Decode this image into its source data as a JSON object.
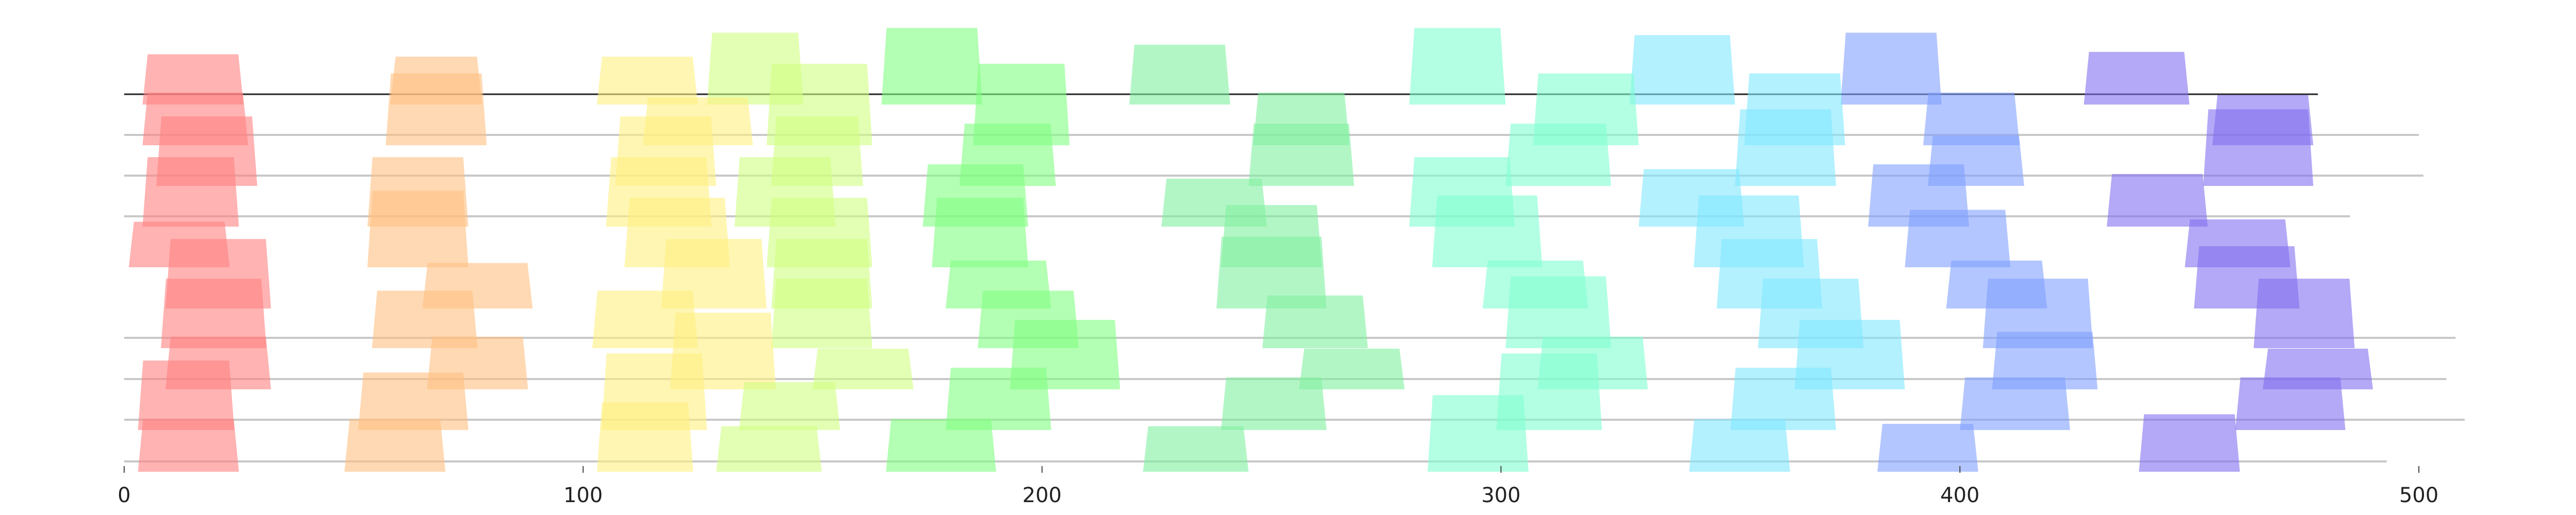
{
  "chart_data": {
    "type": "bar",
    "title": "",
    "xlabel": "",
    "ylabel": "",
    "xlim": [
      0,
      500
    ],
    "x_ticks": [
      0,
      100,
      200,
      300,
      400,
      500
    ],
    "x_tick_labels": [
      "0",
      "100",
      "200",
      "300",
      "400",
      "500"
    ],
    "grid": false,
    "legend": "none",
    "rows": [
      {
        "top": true,
        "end": 478
      },
      {
        "end": 500
      },
      {
        "end": 501
      },
      {
        "end": 485
      },
      {
        "end": 0
      },
      {
        "end": 0
      },
      {
        "end": 508
      },
      {
        "end": 506
      },
      {
        "end": 510
      },
      {
        "end": 493
      }
    ],
    "bars": [
      {
        "start": 4,
        "end": 26,
        "row": 0,
        "hi": 1.05,
        "lo": 0,
        "color": "#FF8080"
      },
      {
        "start": 58,
        "end": 78,
        "row": 0,
        "hi": 1.0,
        "lo": 0,
        "color": "#FFC080"
      },
      {
        "start": 103,
        "end": 125,
        "row": 0,
        "hi": 1.0,
        "lo": 0,
        "color": "#FFF080"
      },
      {
        "start": 127,
        "end": 148,
        "row": 0,
        "hi": 1.5,
        "lo": 0,
        "color": "#D0FF80"
      },
      {
        "start": 165,
        "end": 187,
        "row": 0,
        "hi": 1.6,
        "lo": 0,
        "color": "#80FF80"
      },
      {
        "start": 219,
        "end": 241,
        "row": 0,
        "hi": 1.25,
        "lo": 0,
        "color": "#80F0A0"
      },
      {
        "start": 280,
        "end": 301,
        "row": 0,
        "hi": 1.6,
        "lo": 0,
        "color": "#80FFD0"
      },
      {
        "start": 328,
        "end": 351,
        "row": 0,
        "hi": 1.45,
        "lo": 0,
        "color": "#80E8FF"
      },
      {
        "start": 374,
        "end": 396,
        "row": 0,
        "hi": 1.5,
        "lo": 0,
        "color": "#80A0FF"
      },
      {
        "start": 427,
        "end": 450,
        "row": 0,
        "hi": 1.1,
        "lo": 0,
        "color": "#8070F0"
      },
      {
        "start": 4,
        "end": 27,
        "row": 1,
        "hi": 1.1,
        "lo": 0,
        "color": "#FF8080"
      },
      {
        "start": 57,
        "end": 79,
        "row": 1,
        "hi": 1.5,
        "lo": 0,
        "color": "#FFC080"
      },
      {
        "start": 113,
        "end": 137,
        "row": 1,
        "hi": 1.0,
        "lo": 0,
        "color": "#FFF080"
      },
      {
        "start": 140,
        "end": 163,
        "row": 1,
        "hi": 1.7,
        "lo": 0,
        "color": "#D0FF80"
      },
      {
        "start": 185,
        "end": 206,
        "row": 1,
        "hi": 1.7,
        "lo": 0,
        "color": "#80FF80"
      },
      {
        "start": 246,
        "end": 267,
        "row": 1,
        "hi": 1.1,
        "lo": 0,
        "color": "#80F0A0"
      },
      {
        "start": 307,
        "end": 330,
        "row": 1,
        "hi": 1.5,
        "lo": 0,
        "color": "#80FFD0"
      },
      {
        "start": 353,
        "end": 375,
        "row": 1,
        "hi": 1.5,
        "lo": 0,
        "color": "#80E8FF"
      },
      {
        "start": 392,
        "end": 413,
        "row": 1,
        "hi": 1.1,
        "lo": 0,
        "color": "#80A0FF"
      },
      {
        "start": 455,
        "end": 477,
        "row": 1,
        "hi": 1.05,
        "lo": 0,
        "color": "#8070F0"
      },
      {
        "start": 7,
        "end": 29,
        "row": 2,
        "hi": 1.45,
        "lo": 0,
        "color": "#FF8080"
      },
      {
        "start": 107,
        "end": 129,
        "row": 2,
        "hi": 1.45,
        "lo": 0,
        "color": "#FFF080"
      },
      {
        "start": 141,
        "end": 161,
        "row": 2,
        "hi": 1.45,
        "lo": 0,
        "color": "#D0FF80"
      },
      {
        "start": 182,
        "end": 203,
        "row": 2,
        "hi": 1.3,
        "lo": 0,
        "color": "#80FF80"
      },
      {
        "start": 245,
        "end": 268,
        "row": 2,
        "hi": 1.3,
        "lo": 0,
        "color": "#80F0A0"
      },
      {
        "start": 301,
        "end": 324,
        "row": 2,
        "hi": 1.3,
        "lo": 0,
        "color": "#80FFD0"
      },
      {
        "start": 351,
        "end": 373,
        "row": 2,
        "hi": 1.6,
        "lo": 0,
        "color": "#80E8FF"
      },
      {
        "start": 393,
        "end": 414,
        "row": 2,
        "hi": 1.05,
        "lo": 0,
        "color": "#80A0FF"
      },
      {
        "start": 453,
        "end": 477,
        "row": 2,
        "hi": 1.6,
        "lo": 0,
        "color": "#8070F0"
      },
      {
        "start": 4,
        "end": 25,
        "row": 3,
        "hi": 1.45,
        "lo": 0,
        "color": "#FF8080"
      },
      {
        "start": 53,
        "end": 75,
        "row": 3,
        "hi": 1.45,
        "lo": 0,
        "color": "#FFC080"
      },
      {
        "start": 105,
        "end": 128,
        "row": 3,
        "hi": 1.45,
        "lo": 0,
        "color": "#FFF080"
      },
      {
        "start": 133,
        "end": 155,
        "row": 3,
        "hi": 1.45,
        "lo": 0,
        "color": "#D0FF80"
      },
      {
        "start": 174,
        "end": 197,
        "row": 3,
        "hi": 1.3,
        "lo": 0,
        "color": "#80FF80"
      },
      {
        "start": 226,
        "end": 249,
        "row": 3,
        "hi": 1.0,
        "lo": 0,
        "color": "#80F0A0"
      },
      {
        "start": 280,
        "end": 303,
        "row": 3,
        "hi": 1.45,
        "lo": 0,
        "color": "#80FFD0"
      },
      {
        "start": 330,
        "end": 353,
        "row": 3,
        "hi": 1.2,
        "lo": 0,
        "color": "#80E8FF"
      },
      {
        "start": 380,
        "end": 402,
        "row": 3,
        "hi": 1.3,
        "lo": 0,
        "color": "#80A0FF"
      },
      {
        "start": 432,
        "end": 454,
        "row": 3,
        "hi": 1.1,
        "lo": 0,
        "color": "#8070F0"
      },
      {
        "start": 1,
        "end": 23,
        "row": 4,
        "hi": 0.95,
        "lo": 0,
        "color": "#FF8080"
      },
      {
        "start": 53,
        "end": 75,
        "row": 4,
        "hi": 1.6,
        "lo": 0,
        "color": "#FFC080"
      },
      {
        "start": 109,
        "end": 132,
        "row": 4,
        "hi": 1.45,
        "lo": 0,
        "color": "#FFF080"
      },
      {
        "start": 140,
        "end": 163,
        "row": 4,
        "hi": 1.45,
        "lo": 0,
        "color": "#D0FF80"
      },
      {
        "start": 176,
        "end": 197,
        "row": 4,
        "hi": 1.45,
        "lo": 0,
        "color": "#80FF80"
      },
      {
        "start": 239,
        "end": 261,
        "row": 4,
        "hi": 1.3,
        "lo": 0,
        "color": "#80F0A0"
      },
      {
        "start": 285,
        "end": 309,
        "row": 4,
        "hi": 1.5,
        "lo": 0,
        "color": "#80FFD0"
      },
      {
        "start": 342,
        "end": 366,
        "row": 4,
        "hi": 1.5,
        "lo": 0,
        "color": "#80E8FF"
      },
      {
        "start": 388,
        "end": 411,
        "row": 4,
        "hi": 1.2,
        "lo": 0,
        "color": "#80A0FF"
      },
      {
        "start": 449,
        "end": 472,
        "row": 4,
        "hi": 1.0,
        "lo": 0,
        "color": "#8070F0"
      },
      {
        "start": 9,
        "end": 32,
        "row": 5,
        "hi": 1.45,
        "lo": 0,
        "color": "#FF8080"
      },
      {
        "start": 65,
        "end": 89,
        "row": 5,
        "hi": 0.95,
        "lo": 0,
        "color": "#FFC080"
      },
      {
        "start": 117,
        "end": 140,
        "row": 5,
        "hi": 1.45,
        "lo": 0,
        "color": "#FFF080"
      },
      {
        "start": 141,
        "end": 163,
        "row": 5,
        "hi": 1.45,
        "lo": 0,
        "color": "#D0FF80"
      },
      {
        "start": 179,
        "end": 202,
        "row": 5,
        "hi": 1.0,
        "lo": 0,
        "color": "#80FF80"
      },
      {
        "start": 238,
        "end": 262,
        "row": 5,
        "hi": 1.5,
        "lo": 0,
        "color": "#80F0A0"
      },
      {
        "start": 296,
        "end": 319,
        "row": 5,
        "hi": 1.0,
        "lo": 0,
        "color": "#80FFD0"
      },
      {
        "start": 347,
        "end": 370,
        "row": 5,
        "hi": 1.45,
        "lo": 0,
        "color": "#80E8FF"
      },
      {
        "start": 397,
        "end": 419,
        "row": 5,
        "hi": 1.0,
        "lo": 0,
        "color": "#80A0FF"
      },
      {
        "start": 451,
        "end": 474,
        "row": 5,
        "hi": 1.3,
        "lo": 0,
        "color": "#8070F0"
      },
      {
        "start": 8,
        "end": 31,
        "row": 6,
        "hi": 1.45,
        "lo": 0,
        "color": "#FF8080"
      },
      {
        "start": 54,
        "end": 77,
        "row": 6,
        "hi": 1.2,
        "lo": 0,
        "color": "#FFC080"
      },
      {
        "start": 102,
        "end": 125,
        "row": 6,
        "hi": 1.2,
        "lo": 0,
        "color": "#FFF080"
      },
      {
        "start": 141,
        "end": 163,
        "row": 6,
        "hi": 1.45,
        "lo": 0,
        "color": "#D0FF80"
      },
      {
        "start": 186,
        "end": 208,
        "row": 6,
        "hi": 1.2,
        "lo": 0,
        "color": "#80FF80"
      },
      {
        "start": 248,
        "end": 271,
        "row": 6,
        "hi": 1.1,
        "lo": 0,
        "color": "#80F0A0"
      },
      {
        "start": 301,
        "end": 324,
        "row": 6,
        "hi": 1.5,
        "lo": 0,
        "color": "#80FFD0"
      },
      {
        "start": 356,
        "end": 379,
        "row": 6,
        "hi": 1.45,
        "lo": 0,
        "color": "#80E8FF"
      },
      {
        "start": 405,
        "end": 429,
        "row": 6,
        "hi": 1.45,
        "lo": 0,
        "color": "#80A0FF"
      },
      {
        "start": 464,
        "end": 486,
        "row": 6,
        "hi": 1.45,
        "lo": 0,
        "color": "#8070F0"
      },
      {
        "start": 9,
        "end": 32,
        "row": 7,
        "hi": 1.1,
        "lo": 0,
        "color": "#FF8080"
      },
      {
        "start": 66,
        "end": 88,
        "row": 7,
        "hi": 1.1,
        "lo": 0,
        "color": "#FFC080"
      },
      {
        "start": 119,
        "end": 142,
        "row": 7,
        "hi": 1.6,
        "lo": 0,
        "color": "#FFF080"
      },
      {
        "start": 150,
        "end": 172,
        "row": 7,
        "hi": 0.85,
        "lo": 0,
        "color": "#D0FF80"
      },
      {
        "start": 193,
        "end": 217,
        "row": 7,
        "hi": 1.45,
        "lo": 0,
        "color": "#80FF80"
      },
      {
        "start": 256,
        "end": 279,
        "row": 7,
        "hi": 0.85,
        "lo": 0,
        "color": "#80F0A0"
      },
      {
        "start": 308,
        "end": 332,
        "row": 7,
        "hi": 1.1,
        "lo": 0,
        "color": "#80FFD0"
      },
      {
        "start": 364,
        "end": 388,
        "row": 7,
        "hi": 1.45,
        "lo": 0,
        "color": "#80E8FF"
      },
      {
        "start": 407,
        "end": 430,
        "row": 7,
        "hi": 1.2,
        "lo": 0,
        "color": "#80A0FF"
      },
      {
        "start": 466,
        "end": 490,
        "row": 7,
        "hi": 0.85,
        "lo": 0,
        "color": "#8070F0"
      },
      {
        "start": 3,
        "end": 24,
        "row": 8,
        "hi": 1.45,
        "lo": 0,
        "color": "#FF8080"
      },
      {
        "start": 51,
        "end": 75,
        "row": 8,
        "hi": 1.2,
        "lo": 0,
        "color": "#FFC080"
      },
      {
        "start": 104,
        "end": 127,
        "row": 8,
        "hi": 1.6,
        "lo": 0,
        "color": "#FFF080"
      },
      {
        "start": 134,
        "end": 156,
        "row": 8,
        "hi": 1.0,
        "lo": 0,
        "color": "#D0FF80"
      },
      {
        "start": 179,
        "end": 202,
        "row": 8,
        "hi": 1.3,
        "lo": 0,
        "color": "#80FF80"
      },
      {
        "start": 239,
        "end": 262,
        "row": 8,
        "hi": 1.1,
        "lo": 0,
        "color": "#80F0A0"
      },
      {
        "start": 299,
        "end": 322,
        "row": 8,
        "hi": 1.6,
        "lo": 0,
        "color": "#80FFD0"
      },
      {
        "start": 350,
        "end": 373,
        "row": 8,
        "hi": 1.3,
        "lo": 0,
        "color": "#80E8FF"
      },
      {
        "start": 400,
        "end": 424,
        "row": 8,
        "hi": 1.1,
        "lo": 0,
        "color": "#80A0FF"
      },
      {
        "start": 460,
        "end": 484,
        "row": 8,
        "hi": 1.1,
        "lo": 0,
        "color": "#8070F0"
      },
      {
        "start": 3,
        "end": 25,
        "row": 9,
        "hi": 1.1,
        "lo": 0,
        "color": "#FF8080"
      },
      {
        "start": 48,
        "end": 70,
        "row": 9,
        "hi": 1.1,
        "lo": 0,
        "color": "#FFC080"
      },
      {
        "start": 103,
        "end": 124,
        "row": 9,
        "hi": 1.45,
        "lo": 0,
        "color": "#FFF080"
      },
      {
        "start": 129,
        "end": 152,
        "row": 9,
        "hi": 0.95,
        "lo": 0,
        "color": "#D0FF80"
      },
      {
        "start": 166,
        "end": 190,
        "row": 9,
        "hi": 1.1,
        "lo": 0,
        "color": "#80FF80"
      },
      {
        "start": 222,
        "end": 245,
        "row": 9,
        "hi": 0.95,
        "lo": 0,
        "color": "#80F0A0"
      },
      {
        "start": 284,
        "end": 306,
        "row": 9,
        "hi": 1.6,
        "lo": 0,
        "color": "#80FFD0"
      },
      {
        "start": 341,
        "end": 363,
        "row": 9,
        "hi": 1.1,
        "lo": 0,
        "color": "#80E8FF"
      },
      {
        "start": 382,
        "end": 404,
        "row": 9,
        "hi": 1.0,
        "lo": 0,
        "color": "#80A0FF"
      },
      {
        "start": 439,
        "end": 461,
        "row": 9,
        "hi": 1.2,
        "lo": 0,
        "color": "#8070F0"
      }
    ]
  }
}
